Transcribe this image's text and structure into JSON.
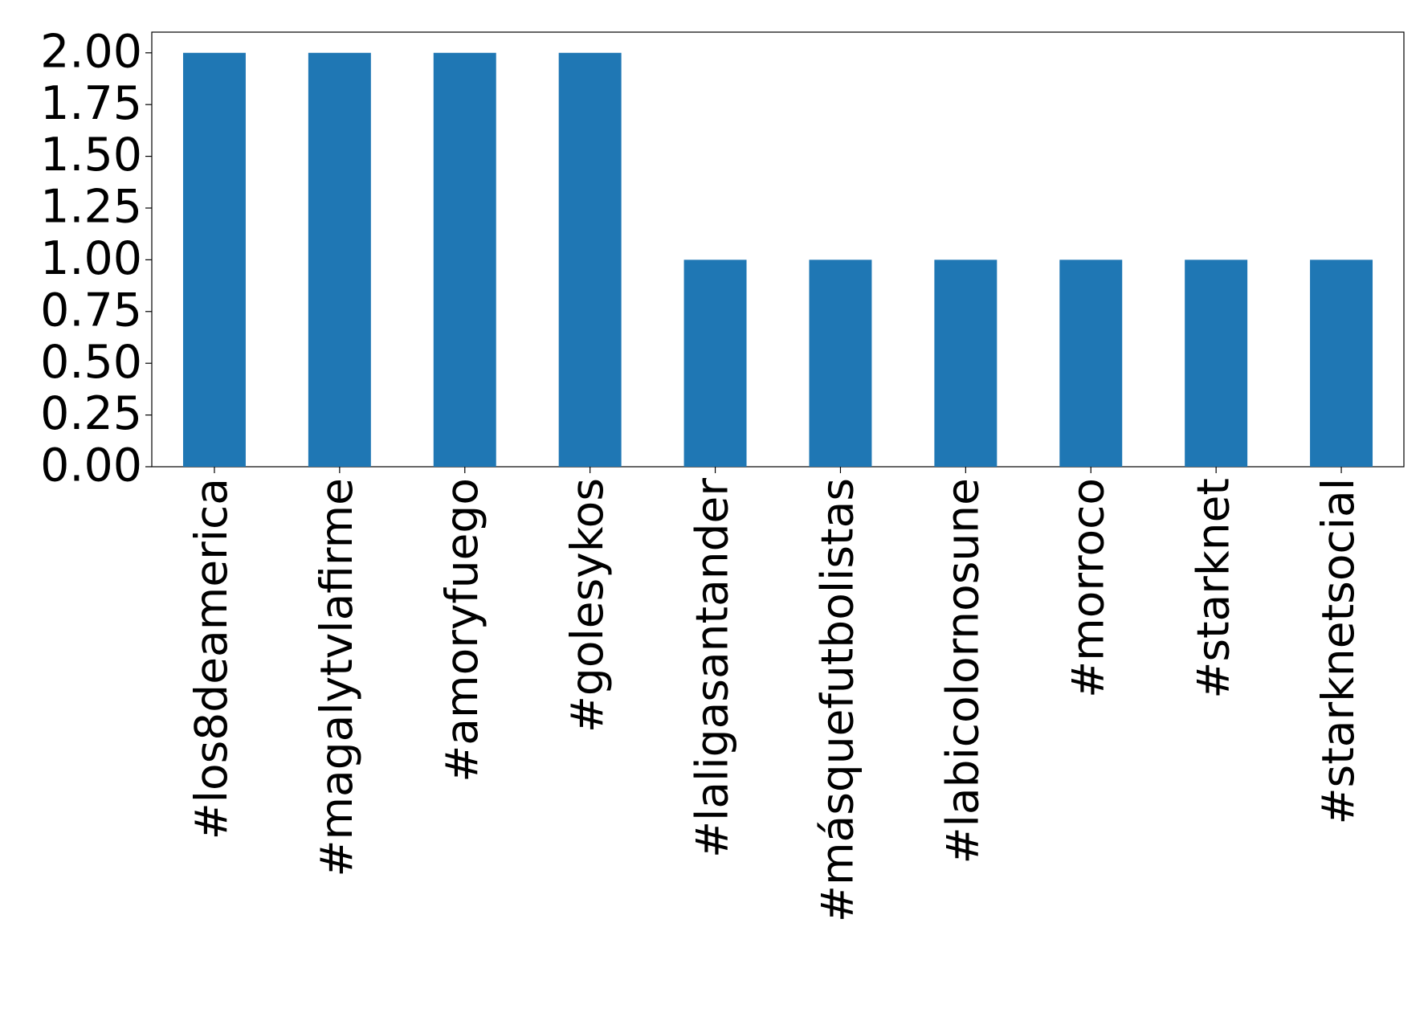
{
  "chart_data": {
    "type": "bar",
    "categories": [
      "#los8deamerica",
      "#magalytvlafirme",
      "#amoryfuego",
      "#golesykos",
      "#laligasantander",
      "#másquefutbolistas",
      "#labicolornosune",
      "#morroco",
      "#starknet",
      "#starknetsocial"
    ],
    "values": [
      2,
      2,
      2,
      2,
      1,
      1,
      1,
      1,
      1,
      1
    ],
    "color": "#1f77b4",
    "ylim": [
      0,
      2.1
    ],
    "yticks": [
      {
        "value": 0,
        "label": "0.00"
      },
      {
        "value": 0.25,
        "label": "0.25"
      },
      {
        "value": 0.5,
        "label": "0.50"
      },
      {
        "value": 0.75,
        "label": "0.75"
      },
      {
        "value": 1,
        "label": "1.00"
      },
      {
        "value": 1.25,
        "label": "1.25"
      },
      {
        "value": 1.5,
        "label": "1.50"
      },
      {
        "value": 1.75,
        "label": "1.75"
      },
      {
        "value": 2,
        "label": "2.00"
      }
    ],
    "grid": false
  }
}
